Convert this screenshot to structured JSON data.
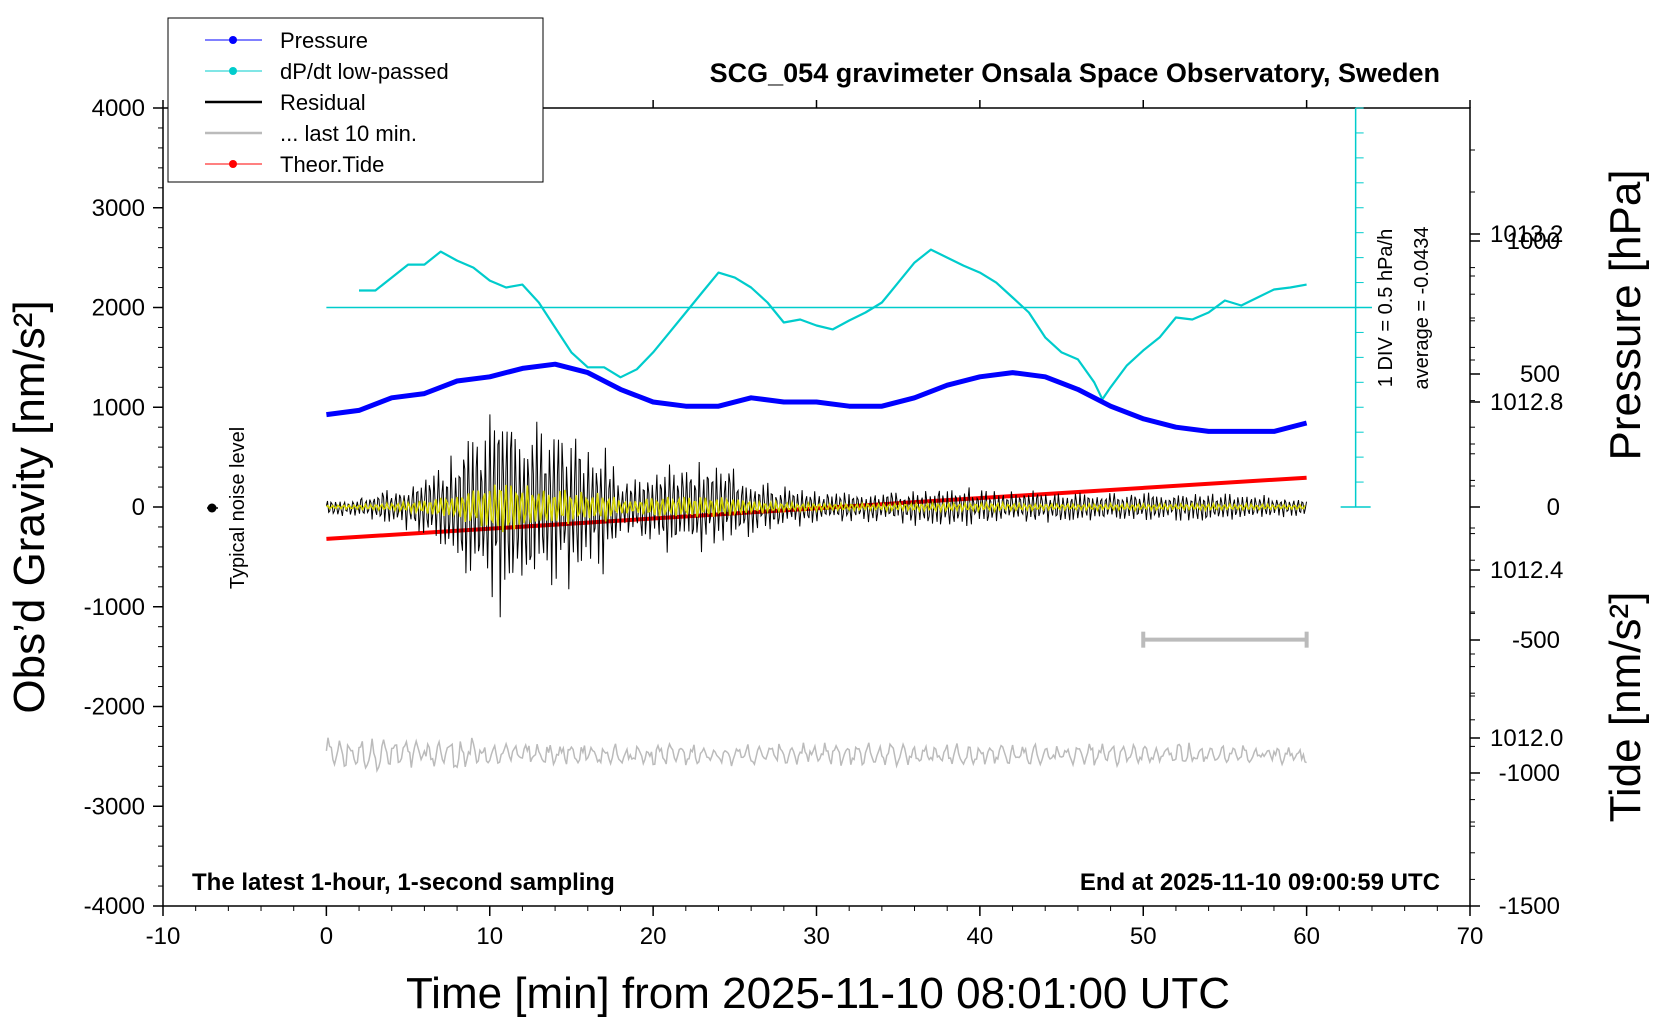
{
  "chart_data": {
    "type": "line",
    "title": "SCG_054 gravimeter Onsala Space Observatory, Sweden",
    "xlabel": "Time [min] from 2025-11-10 08:01:00 UTC",
    "ylabel_left": "Obs’d Gravity [nm/s²]",
    "ylabel_right_top": "Pressure [hPa]",
    "ylabel_right_bottom": "Tide [nm/s²]",
    "xlim": [
      -10,
      70
    ],
    "ylim_left": [
      -4000,
      4000
    ],
    "pressure_ylim": [
      1011.6,
      1013.5
    ],
    "tide_ylim": [
      -1500,
      1500
    ],
    "x_ticks": [
      "-10",
      "0",
      "10",
      "20",
      "30",
      "40",
      "50",
      "60",
      "70"
    ],
    "y_left_ticks": [
      "4000",
      "3000",
      "2000",
      "1000",
      "0",
      "-1000",
      "-2000",
      "-3000",
      "-4000"
    ],
    "pressure_ticks": [
      "1013.2",
      "1012.8",
      "1012.4",
      "1012.0"
    ],
    "tide_ticks": [
      "1000",
      "500",
      "0",
      "-500",
      "-1000",
      "-1500"
    ],
    "legend": [
      {
        "label": "Pressure",
        "color": "#0000ff",
        "marker": true
      },
      {
        "label": "dP/dt low-passed",
        "color": "#00cccc",
        "marker": true
      },
      {
        "label": "Residual",
        "color": "#000000",
        "marker": false
      },
      {
        "label": "... last 10 min.",
        "color": "#bbbbbb",
        "marker": false
      },
      {
        "label": "Theor.Tide",
        "color": "#ff0000",
        "marker": true
      }
    ],
    "legend_position": "top-left",
    "annotations": {
      "bottom_left": "The latest 1-hour, 1-second sampling",
      "bottom_right": "End at 2025-11-10 09:00:59 UTC",
      "noise": "Typical noise level",
      "scale_div": "1 DIV = 0.5 hPa/h",
      "scale_avg": "average = -0.0434"
    },
    "series": [
      {
        "name": "Pressure",
        "axis": "pressure",
        "color": "#0000ff",
        "x": [
          0,
          2,
          4,
          6,
          8,
          10,
          12,
          14,
          16,
          18,
          20,
          22,
          24,
          26,
          28,
          30,
          32,
          34,
          36,
          38,
          40,
          42,
          44,
          46,
          48,
          50,
          52,
          54,
          56,
          58,
          60
        ],
        "y": [
          1012.77,
          1012.78,
          1012.81,
          1012.82,
          1012.85,
          1012.86,
          1012.88,
          1012.89,
          1012.87,
          1012.83,
          1012.8,
          1012.79,
          1012.79,
          1012.81,
          1012.8,
          1012.8,
          1012.79,
          1012.79,
          1012.81,
          1012.84,
          1012.86,
          1012.87,
          1012.86,
          1012.83,
          1012.79,
          1012.76,
          1012.74,
          1012.73,
          1012.73,
          1012.73,
          1012.75
        ]
      },
      {
        "name": "dP/dt low-passed",
        "axis": "left",
        "color": "#00cccc",
        "x": [
          2,
          3,
          4,
          5,
          6,
          7,
          8,
          9,
          10,
          11,
          12,
          13,
          14,
          15,
          16,
          17,
          18,
          19,
          20,
          21,
          22,
          23,
          24,
          25,
          26,
          27,
          28,
          29,
          30,
          31,
          32,
          33,
          34,
          35,
          36,
          37,
          38,
          39,
          40,
          41,
          42,
          43,
          44,
          45,
          46,
          47,
          47.5,
          48,
          49,
          50,
          51,
          52,
          53,
          54,
          55,
          56,
          57,
          58,
          59,
          60
        ],
        "y": [
          2170,
          2170,
          2300,
          2430,
          2430,
          2560,
          2470,
          2400,
          2270,
          2200,
          2230,
          2050,
          1800,
          1550,
          1400,
          1400,
          1300,
          1380,
          1550,
          1750,
          1950,
          2150,
          2350,
          2300,
          2200,
          2050,
          1850,
          1880,
          1820,
          1780,
          1870,
          1950,
          2050,
          2250,
          2450,
          2580,
          2500,
          2420,
          2350,
          2250,
          2100,
          1950,
          1700,
          1550,
          1480,
          1250,
          1080,
          1200,
          1420,
          1570,
          1700,
          1900,
          1880,
          1950,
          2070,
          2020,
          2100,
          2180,
          2200,
          2230
        ]
      },
      {
        "name": "Theor.Tide",
        "axis": "tide",
        "color": "#ff0000",
        "x": [
          0,
          60
        ],
        "y": [
          -120,
          110
        ]
      },
      {
        "name": "Residual",
        "axis": "left",
        "color": "#000000",
        "envelope_x": [
          0,
          2,
          4,
          6,
          8,
          9,
          10,
          11,
          12,
          13,
          14,
          15,
          16,
          17,
          18,
          20,
          22,
          24,
          26,
          28,
          30,
          32,
          34,
          36,
          38,
          40,
          45,
          50,
          55,
          60
        ],
        "envelope_amp": [
          80,
          120,
          180,
          300,
          600,
          900,
          1050,
          1400,
          1050,
          900,
          850,
          850,
          650,
          700,
          300,
          450,
          480,
          480,
          330,
          220,
          180,
          180,
          160,
          200,
          200,
          200,
          150,
          150,
          150,
          100
        ]
      },
      {
        "name": "... last 10 min.",
        "axis": "left",
        "color": "#bbbbbb",
        "x_range": [
          50,
          60
        ],
        "baseline": -2480,
        "amplitude": 120
      }
    ]
  }
}
